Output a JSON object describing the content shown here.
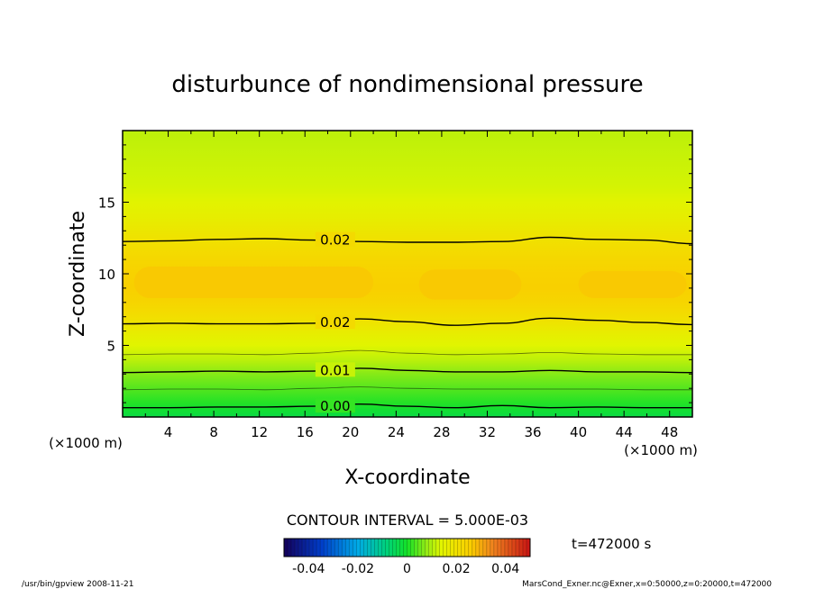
{
  "chart_data": {
    "type": "heatmap",
    "title": "disturbunce of nondimensional pressure",
    "xlabel": "X-coordinate",
    "ylabel": "Z-coordinate",
    "x_unit_left": "(×1000 m)",
    "x_unit_right": "(×1000 m)",
    "xlim": [
      0,
      50
    ],
    "ylim": [
      0,
      20
    ],
    "x_ticks": [
      "4",
      "8",
      "12",
      "16",
      "20",
      "24",
      "28",
      "32",
      "36",
      "40",
      "44",
      "48"
    ],
    "x_tick_values": [
      4,
      8,
      12,
      16,
      20,
      24,
      28,
      32,
      36,
      40,
      44,
      48
    ],
    "y_ticks": [
      "5",
      "10",
      "15"
    ],
    "y_tick_values": [
      5,
      10,
      15
    ],
    "contour_interval_text": "CONTOUR INTERVAL = 5.000E-03",
    "time_text": "t=472000 s",
    "colorbar": {
      "range": [
        -0.05,
        0.05
      ],
      "tick_labels": [
        "-0.04",
        "-0.02",
        "0",
        "0.02",
        "0.04"
      ],
      "tick_values": [
        -0.04,
        -0.02,
        0,
        0.02,
        0.04
      ]
    },
    "footer_left": "/usr/bin/gpview   2008-11-21",
    "footer_right": "MarsCond_Exner.nc@Exner,x=0:50000,z=0:20000,t=472000",
    "field_profile": {
      "z": [
        0,
        0.5,
        1,
        2,
        3,
        4,
        5,
        6,
        7,
        8,
        9,
        10,
        11,
        12,
        13,
        14,
        15,
        16,
        17,
        18,
        19,
        20
      ],
      "value": [
        -0.003,
        -0.001,
        0.001,
        0.004,
        0.007,
        0.011,
        0.014,
        0.017,
        0.021,
        0.0235,
        0.025,
        0.0245,
        0.023,
        0.021,
        0.0185,
        0.016,
        0.0145,
        0.013,
        0.0125,
        0.012,
        0.0115,
        0.011
      ]
    },
    "contours": [
      {
        "label": "0.02",
        "z_mean": 12.25,
        "wiggle": [
          0,
          0.05,
          0.15,
          0.2,
          0.1,
          0.0,
          -0.05,
          -0.05,
          0.0,
          0.3,
          0.15,
          0.1,
          -0.15
        ],
        "label_x": 17
      },
      {
        "label": "0.02",
        "z_mean": 6.5,
        "wiggle": [
          0.0,
          0.05,
          0.0,
          0.0,
          0.05,
          0.35,
          0.15,
          -0.1,
          0.05,
          0.4,
          0.25,
          0.1,
          -0.05
        ],
        "label_x": 17
      },
      {
        "label": "0.01",
        "z_mean": 3.15,
        "wiggle": [
          -0.05,
          0.0,
          0.05,
          0.0,
          0.05,
          0.25,
          0.1,
          0.0,
          0.0,
          0.1,
          0.0,
          0.0,
          -0.05
        ],
        "label_x": 17
      },
      {
        "label": "0.00",
        "z_mean": 0.65,
        "wiggle": [
          0.0,
          0.0,
          0.05,
          0.05,
          0.1,
          0.25,
          0.1,
          0.0,
          0.15,
          0.0,
          0.05,
          0.0,
          0.0
        ],
        "label_x": 17
      }
    ],
    "minor_contours": [
      {
        "z_mean": 1.9,
        "wiggle": [
          0.0,
          0.05,
          0.05,
          0.0,
          0.1,
          0.2,
          0.1,
          0.05,
          0.05,
          0.05,
          0.05,
          0.0,
          0.0
        ]
      },
      {
        "z_mean": 4.35,
        "wiggle": [
          0.0,
          0.05,
          0.05,
          0.0,
          0.1,
          0.3,
          0.1,
          0.0,
          0.05,
          0.15,
          0.05,
          0.0,
          0.0
        ]
      }
    ]
  }
}
